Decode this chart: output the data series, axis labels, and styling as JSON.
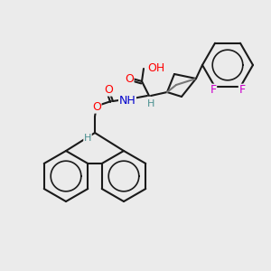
{
  "bg_color": "#ebebeb",
  "bond_color": "#1a1a1a",
  "bond_width": 1.5,
  "atom_colors": {
    "O": "#ff0000",
    "N": "#0000cc",
    "F": "#cc00cc",
    "H": "#4a9090",
    "C": "#1a1a1a"
  },
  "font_size": 8,
  "fig_size": [
    3.0,
    3.0
  ],
  "dpi": 100
}
